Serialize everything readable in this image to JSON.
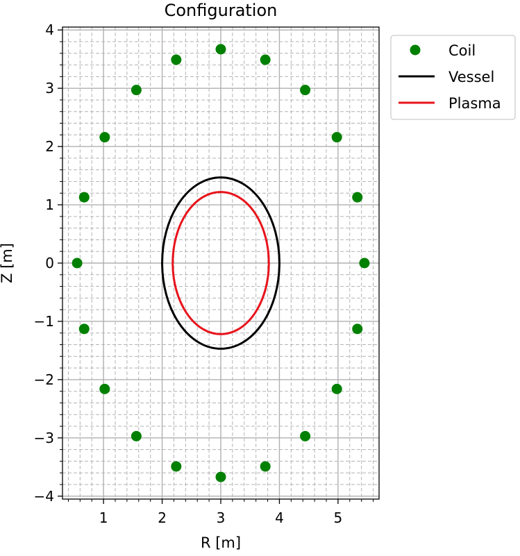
{
  "chart_data": {
    "type": "scatter",
    "title": "Configuration",
    "xlabel": "R [m]",
    "ylabel": "Z [m]",
    "xlim": [
      0.3,
      5.7
    ],
    "ylim": [
      -4.05,
      4.05
    ],
    "xticks": [
      1,
      2,
      3,
      4,
      5
    ],
    "yticks": [
      -4,
      -3,
      -2,
      -1,
      0,
      1,
      2,
      3,
      4
    ],
    "grid": true,
    "minor_grid": true,
    "aspect": "equal",
    "legend_position": "outside upper-right",
    "series": [
      {
        "name": "Coil",
        "kind": "scatter",
        "color": "#008000",
        "points": [
          [
            3.0,
            3.67
          ],
          [
            3.76,
            3.49
          ],
          [
            4.44,
            2.97
          ],
          [
            4.98,
            2.16
          ],
          [
            5.33,
            1.13
          ],
          [
            5.45,
            0.0
          ],
          [
            5.33,
            -1.13
          ],
          [
            4.98,
            -2.16
          ],
          [
            4.44,
            -2.97
          ],
          [
            3.76,
            -3.49
          ],
          [
            3.0,
            -3.67
          ],
          [
            2.24,
            -3.49
          ],
          [
            1.56,
            -2.97
          ],
          [
            1.02,
            -2.16
          ],
          [
            0.67,
            -1.13
          ],
          [
            0.55,
            0.0
          ],
          [
            0.67,
            1.13
          ],
          [
            1.02,
            2.16
          ],
          [
            1.56,
            2.97
          ],
          [
            2.24,
            3.49
          ]
        ]
      },
      {
        "name": "Vessel",
        "kind": "ellipse",
        "color": "#000000",
        "center": [
          3.0,
          0.0
        ],
        "r_semi_axis": 1.0,
        "z_semi_axis": 1.47
      },
      {
        "name": "Plasma",
        "kind": "ellipse",
        "color": "#e8141c",
        "center": [
          3.0,
          0.0
        ],
        "r_semi_axis": 0.82,
        "z_semi_axis": 1.22
      }
    ]
  }
}
